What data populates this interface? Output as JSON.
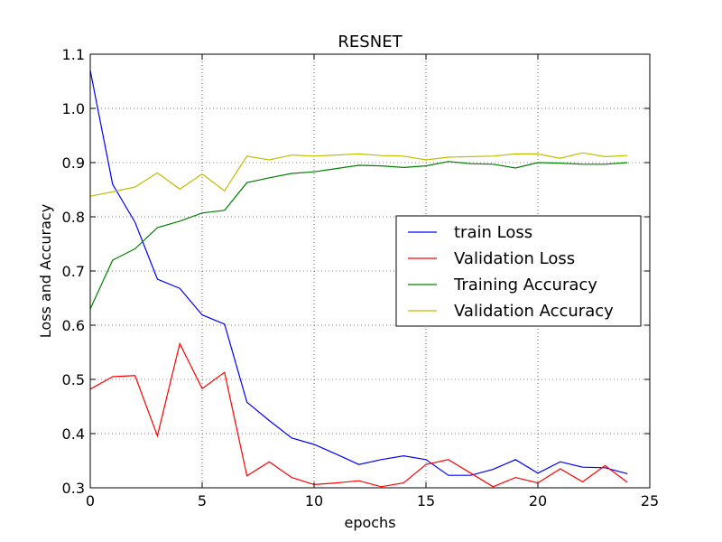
{
  "chart_data": {
    "type": "line",
    "title": "RESNET",
    "xlabel": "epochs",
    "ylabel": "Loss and Accuracy",
    "xlim": [
      0,
      25
    ],
    "ylim": [
      0.3,
      1.1
    ],
    "xticks": [
      "0",
      "5",
      "10",
      "15",
      "20",
      "25"
    ],
    "yticks": [
      "0.3",
      "0.4",
      "0.5",
      "0.6",
      "0.7",
      "0.8",
      "0.9",
      "1.0",
      "1.1"
    ],
    "grid": true,
    "legend_position": "center-right",
    "x": [
      0,
      1,
      2,
      3,
      4,
      5,
      6,
      7,
      8,
      9,
      10,
      11,
      12,
      13,
      14,
      15,
      16,
      17,
      18,
      19,
      20,
      21,
      22,
      23,
      24
    ],
    "series": [
      {
        "name": "train Loss",
        "color": "#0000ff",
        "values": [
          1.07,
          0.86,
          0.79,
          0.685,
          0.668,
          0.619,
          0.602,
          0.458,
          0.424,
          0.392,
          0.38,
          0.362,
          0.343,
          0.352,
          0.359,
          0.352,
          0.323,
          0.323,
          0.334,
          0.352,
          0.327,
          0.348,
          0.338,
          0.337,
          0.326
        ]
      },
      {
        "name": "Validation Loss",
        "color": "#ff0000",
        "values": [
          0.482,
          0.505,
          0.507,
          0.396,
          0.566,
          0.483,
          0.513,
          0.322,
          0.348,
          0.319,
          0.306,
          0.309,
          0.313,
          0.302,
          0.309,
          0.343,
          0.352,
          0.327,
          0.302,
          0.319,
          0.309,
          0.335,
          0.311,
          0.341,
          0.31
        ]
      },
      {
        "name": "Training Accuracy",
        "color": "#008000",
        "values": [
          0.63,
          0.72,
          0.741,
          0.78,
          0.792,
          0.807,
          0.812,
          0.863,
          0.872,
          0.88,
          0.883,
          0.889,
          0.895,
          0.894,
          0.891,
          0.894,
          0.902,
          0.898,
          0.897,
          0.89,
          0.9,
          0.899,
          0.897,
          0.897,
          0.9
        ]
      },
      {
        "name": "Validation Accuracy",
        "color": "#bfbf00",
        "values": [
          0.838,
          0.846,
          0.855,
          0.881,
          0.851,
          0.879,
          0.848,
          0.912,
          0.905,
          0.914,
          0.912,
          0.914,
          0.916,
          0.913,
          0.912,
          0.905,
          0.91,
          0.911,
          0.912,
          0.916,
          0.916,
          0.908,
          0.918,
          0.911,
          0.913
        ]
      }
    ]
  }
}
